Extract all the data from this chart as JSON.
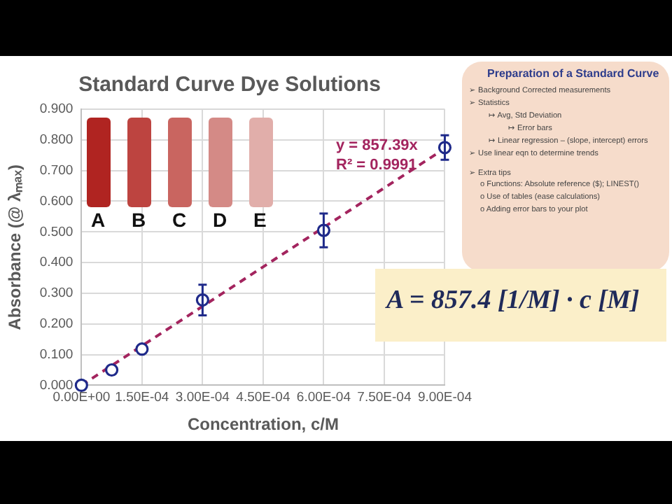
{
  "chart_data": {
    "type": "scatter",
    "title": "Standard Curve Dye Solutions",
    "xlabel": "Concentration, c/M",
    "ylabel": "Absorbance (@ λₘₐₓ)",
    "xlim": [
      0,
      0.0009
    ],
    "xticks": [
      {
        "value": 0,
        "label": "0.00E+00"
      },
      {
        "value": 0.00015,
        "label": "1.50E-04"
      },
      {
        "value": 0.0003,
        "label": "3.00E-04"
      },
      {
        "value": 0.00045,
        "label": "4.50E-04"
      },
      {
        "value": 0.0006,
        "label": "6.00E-04"
      },
      {
        "value": 0.00075,
        "label": "7.50E-04"
      },
      {
        "value": 0.0009,
        "label": "9.00E-04"
      }
    ],
    "ylim": [
      0,
      0.9
    ],
    "yticks": [
      {
        "value": 0,
        "label": "0.000"
      },
      {
        "value": 0.1,
        "label": "0.100"
      },
      {
        "value": 0.2,
        "label": "0.200"
      },
      {
        "value": 0.3,
        "label": "0.300"
      },
      {
        "value": 0.4,
        "label": "0.400"
      },
      {
        "value": 0.5,
        "label": "0.500"
      },
      {
        "value": 0.6,
        "label": "0.600"
      },
      {
        "value": 0.7,
        "label": "0.700"
      },
      {
        "value": 0.8,
        "label": "0.800"
      },
      {
        "value": 0.9,
        "label": "0.900"
      }
    ],
    "grid": true,
    "legend": false,
    "series": [
      {
        "type": "scatter",
        "marker": "circle",
        "color": "#1f2a8a",
        "x": [
          0,
          7.5e-05,
          0.00015,
          0.0003,
          0.0006,
          0.0009
        ],
        "values": [
          0,
          0.05,
          0.118,
          0.278,
          0.505,
          0.775
        ],
        "errors": [
          null,
          null,
          null,
          0.05,
          0.055,
          0.04
        ]
      },
      {
        "type": "line",
        "color": "#a3245e",
        "line_style": "dashed",
        "x": [
          0,
          0.0009
        ],
        "values": [
          0,
          0.772
        ]
      }
    ],
    "annotations": [
      "y = 857.39x",
      "R² = 0.9991",
      "A",
      "B",
      "C",
      "D",
      "E",
      "Preparation of a Standard Curve",
      "➢ Background Corrected measurements",
      "➢ Statistics",
      "↦ Avg, Std Deviation",
      "↦ Error bars",
      "↦ Linear regression – (slope, intercept) errors",
      "➢ Use linear eqn to determine trends",
      "➢ Extra tips",
      "o Functions: Absolute reference ($); LINEST()",
      "o Use of tables (ease calculations)",
      "o Adding error bars to your plot",
      "A = 857.4 [1/M] · c [M]"
    ]
  }
}
